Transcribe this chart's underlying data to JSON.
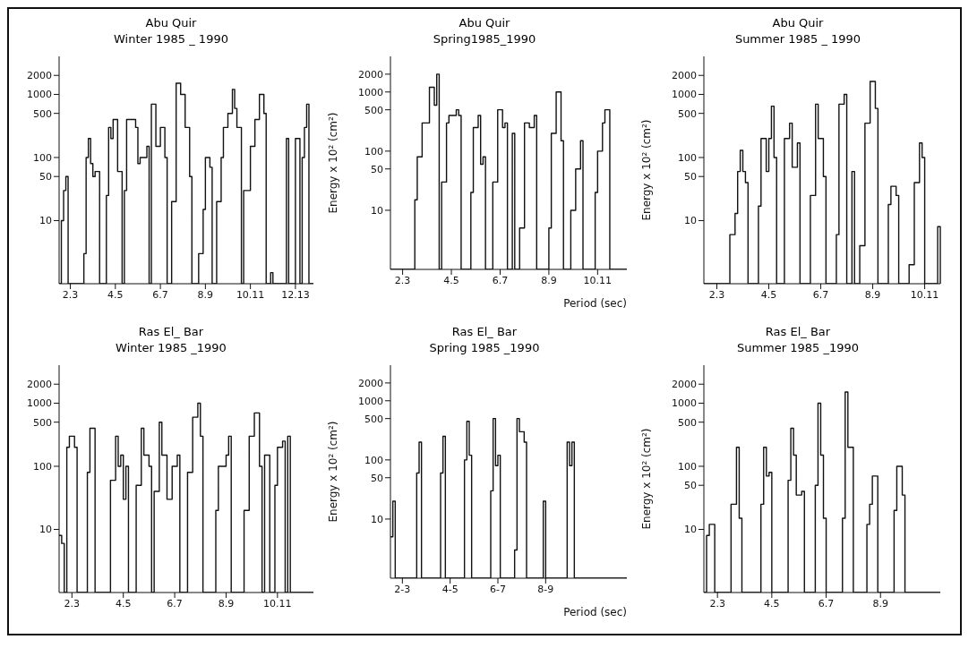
{
  "chart_data": [
    {
      "type": "step",
      "title": "Abu Quir",
      "subtitle": "Winter 1985 _ 1990",
      "categories": [
        null,
        null,
        null,
        null,
        null,
        "2.3",
        null,
        null,
        null,
        null,
        null,
        null,
        null,
        null,
        null,
        null,
        null,
        null,
        null,
        null,
        null,
        null,
        null,
        null,
        null,
        "4.5",
        null,
        null,
        null,
        null,
        null,
        null,
        null,
        null,
        null,
        null,
        null,
        null,
        null,
        null,
        null,
        null,
        null,
        null,
        null,
        "6.7",
        null,
        null,
        null,
        null,
        null,
        null,
        null,
        null,
        null,
        null,
        null,
        null,
        null,
        null,
        null,
        null,
        null,
        null,
        null,
        "8.9",
        null,
        null,
        null,
        null,
        null,
        null,
        null,
        null,
        null,
        null,
        null,
        null,
        null,
        null,
        null,
        null,
        null,
        null,
        null,
        "10.11",
        null,
        null,
        null,
        null,
        null,
        null,
        null,
        null,
        null,
        null,
        null,
        null,
        null,
        null,
        null,
        null,
        null,
        null,
        null,
        "12.13",
        null,
        null,
        null,
        null,
        null,
        null,
        null,
        null
      ],
      "series": [
        {
          "color": "#111111",
          "values": [
            1,
            10,
            30,
            50,
            1,
            1,
            1,
            1,
            1,
            1,
            1,
            3,
            100,
            200,
            80,
            50,
            60,
            60,
            1,
            1,
            1,
            25,
            300,
            200,
            400,
            400,
            60,
            60,
            1,
            30,
            400,
            400,
            400,
            400,
            300,
            80,
            100,
            100,
            100,
            150,
            1,
            700,
            700,
            150,
            150,
            300,
            300,
            100,
            1,
            1,
            20,
            20,
            1500,
            1500,
            1000,
            1000,
            300,
            300,
            50,
            1,
            1,
            1,
            3,
            3,
            15,
            100,
            100,
            70,
            1,
            1,
            20,
            20,
            100,
            300,
            300,
            500,
            500,
            1200,
            600,
            300,
            300,
            1,
            30,
            30,
            30,
            150,
            150,
            400,
            400,
            1000,
            1000,
            500,
            1,
            1,
            1.5,
            1,
            1,
            1,
            1,
            1,
            1,
            200,
            1,
            1,
            1,
            200,
            200,
            1,
            100,
            300,
            700,
            1,
            1,
            1
          ]
        }
      ],
      "log": "y",
      "ylim": [
        1,
        4000
      ],
      "yticks": [
        10,
        50,
        100,
        500,
        1000,
        2000
      ],
      "marker": "none"
    },
    {
      "type": "step",
      "title": "Abu Quir",
      "subtitle": "Spring1985_1990",
      "ylabel": "Energy x 10² (cm²)",
      "xlabel": "Period (sec)",
      "categories": [
        null,
        null,
        null,
        null,
        null,
        "2.3",
        null,
        null,
        null,
        null,
        null,
        null,
        null,
        null,
        null,
        null,
        null,
        null,
        null,
        null,
        null,
        null,
        null,
        null,
        null,
        "4.5",
        null,
        null,
        null,
        null,
        null,
        null,
        null,
        null,
        null,
        null,
        null,
        null,
        null,
        null,
        null,
        null,
        null,
        null,
        null,
        "6.7",
        null,
        null,
        null,
        null,
        null,
        null,
        null,
        null,
        null,
        null,
        null,
        null,
        null,
        null,
        null,
        null,
        null,
        null,
        null,
        "8.9",
        null,
        null,
        null,
        null,
        null,
        null,
        null,
        null,
        null,
        null,
        null,
        null,
        null,
        null,
        null,
        null,
        null,
        null,
        null,
        "10.11",
        null,
        null,
        null,
        null,
        null,
        null,
        null,
        null,
        null,
        null,
        null,
        null
      ],
      "series": [
        {
          "color": "#111111",
          "values": [
            1,
            1,
            1,
            1,
            1,
            1,
            1,
            1,
            1,
            1,
            15,
            80,
            80,
            300,
            300,
            300,
            1200,
            1200,
            600,
            2000,
            1,
            30,
            30,
            300,
            400,
            400,
            400,
            500,
            400,
            1,
            1,
            1,
            1,
            20,
            250,
            250,
            400,
            60,
            80,
            1,
            1,
            1,
            30,
            30,
            500,
            500,
            250,
            300,
            1,
            1,
            200,
            1,
            1,
            5,
            5,
            300,
            300,
            250,
            250,
            400,
            1,
            1,
            1,
            1,
            1,
            5,
            200,
            200,
            1000,
            1000,
            150,
            1,
            1,
            1,
            10,
            10,
            50,
            50,
            150,
            1,
            1,
            1,
            1,
            1,
            20,
            100,
            100,
            300,
            500,
            500,
            1,
            1,
            1,
            1,
            1,
            1,
            1,
            1
          ]
        }
      ],
      "log": "y",
      "ylim": [
        1,
        4000
      ],
      "yticks": [
        10,
        50,
        100,
        500,
        1000,
        2000
      ],
      "marker": "none"
    },
    {
      "type": "step",
      "title": "Abu Quir",
      "subtitle": "Summer 1985 _ 1990",
      "ylabel": "Energy x 10² (cm²)",
      "categories": [
        null,
        null,
        null,
        null,
        null,
        "2.3",
        null,
        null,
        null,
        null,
        null,
        null,
        null,
        null,
        null,
        null,
        null,
        null,
        null,
        null,
        null,
        null,
        null,
        null,
        null,
        "4.5",
        null,
        null,
        null,
        null,
        null,
        null,
        null,
        null,
        null,
        null,
        null,
        null,
        null,
        null,
        null,
        null,
        null,
        null,
        null,
        "6.7",
        null,
        null,
        null,
        null,
        null,
        null,
        null,
        null,
        null,
        null,
        null,
        null,
        null,
        null,
        null,
        null,
        null,
        null,
        null,
        "8.9",
        null,
        null,
        null,
        null,
        null,
        null,
        null,
        null,
        null,
        null,
        null,
        null,
        null,
        null,
        null,
        null,
        null,
        null,
        null,
        "10.11",
        null,
        null,
        null,
        null,
        null,
        null
      ],
      "series": [
        {
          "color": "#111111",
          "values": [
            1,
            1,
            1,
            1,
            1,
            1,
            1,
            1,
            1,
            1,
            6,
            6,
            13,
            60,
            130,
            60,
            40,
            1,
            1,
            1,
            1,
            17,
            200,
            200,
            60,
            200,
            650,
            100,
            1,
            1,
            1,
            200,
            200,
            350,
            70,
            70,
            170,
            1,
            1,
            1,
            1,
            25,
            25,
            700,
            200,
            200,
            50,
            1,
            1,
            1,
            1,
            6,
            700,
            700,
            1000,
            1,
            1,
            60,
            1,
            1,
            4,
            4,
            350,
            350,
            1600,
            1600,
            600,
            1,
            1,
            1,
            1,
            18,
            35,
            35,
            25,
            1,
            1,
            1,
            1,
            2,
            2,
            40,
            40,
            170,
            100,
            1,
            1,
            1,
            1,
            1,
            8,
            1
          ]
        }
      ],
      "log": "y",
      "ylim": [
        1,
        4000
      ],
      "yticks": [
        10,
        50,
        100,
        500,
        1000,
        2000
      ],
      "marker": "none"
    },
    {
      "type": "step",
      "title": "Ras El_ Bar",
      "subtitle": "Winter 1985 _1990",
      "categories": [
        null,
        null,
        null,
        null,
        null,
        "2.3",
        null,
        null,
        null,
        null,
        null,
        null,
        null,
        null,
        null,
        null,
        null,
        null,
        null,
        null,
        null,
        null,
        null,
        null,
        null,
        "4.5",
        null,
        null,
        null,
        null,
        null,
        null,
        null,
        null,
        null,
        null,
        null,
        null,
        null,
        null,
        null,
        null,
        null,
        null,
        null,
        "6.7",
        null,
        null,
        null,
        null,
        null,
        null,
        null,
        null,
        null,
        null,
        null,
        null,
        null,
        null,
        null,
        null,
        null,
        null,
        null,
        "8.9",
        null,
        null,
        null,
        null,
        null,
        null,
        null,
        null,
        null,
        null,
        null,
        null,
        null,
        null,
        null,
        null,
        null,
        null,
        null,
        "10.11",
        null,
        null,
        null,
        null,
        null,
        null,
        null,
        null,
        null,
        null,
        null,
        null,
        null,
        null
      ],
      "series": [
        {
          "color": "#111111",
          "values": [
            8,
            6,
            1,
            200,
            300,
            300,
            200,
            1,
            1,
            1,
            1,
            80,
            400,
            400,
            1,
            1,
            1,
            1,
            1,
            1,
            60,
            60,
            300,
            100,
            150,
            30,
            100,
            1,
            1,
            1,
            50,
            50,
            400,
            150,
            150,
            100,
            1,
            40,
            40,
            500,
            150,
            150,
            30,
            30,
            100,
            100,
            150,
            1,
            1,
            1,
            80,
            80,
            600,
            600,
            1000,
            300,
            1,
            1,
            1,
            1,
            1,
            20,
            100,
            100,
            100,
            150,
            300,
            1,
            1,
            1,
            1,
            1,
            20,
            20,
            300,
            300,
            700,
            700,
            100,
            1,
            150,
            150,
            1,
            1,
            50,
            200,
            200,
            250,
            1,
            300,
            1,
            1,
            1,
            1,
            1,
            1,
            1,
            1,
            1,
            1
          ]
        }
      ],
      "log": "y",
      "ylim": [
        1,
        4000
      ],
      "yticks": [
        10,
        100,
        500,
        1000,
        2000
      ],
      "marker": "none"
    },
    {
      "type": "step",
      "title": "Ras El_ Bar",
      "subtitle": "Spring 1985 _1990",
      "ylabel": "Energy x 10² (cm²)",
      "xlabel": "Period (sec)",
      "categories": [
        null,
        null,
        null,
        null,
        null,
        "2-3",
        null,
        null,
        null,
        null,
        null,
        null,
        null,
        null,
        null,
        null,
        null,
        null,
        null,
        null,
        null,
        null,
        null,
        null,
        null,
        "4-5",
        null,
        null,
        null,
        null,
        null,
        null,
        null,
        null,
        null,
        null,
        null,
        null,
        null,
        null,
        null,
        null,
        null,
        null,
        null,
        "6-7",
        null,
        null,
        null,
        null,
        null,
        null,
        null,
        null,
        null,
        null,
        null,
        null,
        null,
        null,
        null,
        null,
        null,
        null,
        null,
        "8-9",
        null,
        null,
        null,
        null,
        null,
        null,
        null,
        null,
        null,
        null,
        null,
        null,
        null,
        null,
        null,
        null,
        null,
        null,
        null,
        null,
        null,
        null,
        null,
        null,
        null,
        null,
        null,
        null,
        null,
        null,
        null,
        null,
        null,
        null
      ],
      "series": [
        {
          "color": "#111111",
          "values": [
            5,
            20,
            1,
            1,
            1,
            1,
            1,
            1,
            1,
            1,
            1,
            60,
            200,
            1,
            1,
            1,
            1,
            1,
            1,
            1,
            1,
            60,
            250,
            1,
            1,
            1,
            1,
            1,
            1,
            1,
            1,
            100,
            450,
            120,
            1,
            1,
            1,
            1,
            1,
            1,
            1,
            1,
            30,
            500,
            80,
            120,
            1,
            1,
            1,
            1,
            1,
            1,
            3,
            500,
            300,
            300,
            200,
            1,
            1,
            1,
            1,
            1,
            1,
            1,
            20,
            1,
            1,
            1,
            1,
            1,
            1,
            1,
            1,
            1,
            200,
            80,
            200,
            1,
            1,
            1,
            1,
            1,
            1,
            1,
            1,
            1,
            1,
            1,
            1,
            1,
            1,
            1,
            1,
            1,
            1,
            1,
            1,
            1,
            1,
            1
          ]
        }
      ],
      "log": "y",
      "ylim": [
        1,
        4000
      ],
      "yticks": [
        10,
        50,
        100,
        500,
        1000,
        2000
      ],
      "marker": "none"
    },
    {
      "type": "step",
      "title": "Ras El_ Bar",
      "subtitle": "Summer 1985 _1990",
      "ylabel": "Energy x 10² (cm²)",
      "categories": [
        null,
        null,
        null,
        null,
        null,
        "2.3",
        null,
        null,
        null,
        null,
        null,
        null,
        null,
        null,
        null,
        null,
        null,
        null,
        null,
        null,
        null,
        null,
        null,
        null,
        null,
        "4.5",
        null,
        null,
        null,
        null,
        null,
        null,
        null,
        null,
        null,
        null,
        null,
        null,
        null,
        null,
        null,
        null,
        null,
        null,
        null,
        "6.7",
        null,
        null,
        null,
        null,
        null,
        null,
        null,
        null,
        null,
        null,
        null,
        null,
        null,
        null,
        null,
        null,
        null,
        null,
        null,
        "8.9",
        null,
        null,
        null,
        null,
        null,
        null,
        null,
        null,
        null,
        null,
        null,
        null,
        null,
        null,
        null,
        null,
        null,
        null,
        null,
        null,
        null,
        null
      ],
      "series": [
        {
          "color": "#111111",
          "values": [
            1,
            8,
            12,
            12,
            1,
            1,
            1,
            1,
            1,
            1,
            25,
            25,
            200,
            15,
            1,
            1,
            1,
            1,
            1,
            1,
            1,
            25,
            200,
            70,
            80,
            1,
            1,
            1,
            1,
            1,
            1,
            60,
            400,
            150,
            35,
            35,
            40,
            1,
            1,
            1,
            1,
            50,
            1000,
            150,
            15,
            1,
            1,
            1,
            1,
            1,
            1,
            15,
            1500,
            200,
            200,
            1,
            1,
            1,
            1,
            1,
            12,
            25,
            70,
            70,
            1,
            1,
            1,
            1,
            1,
            1,
            20,
            100,
            100,
            35,
            1,
            1,
            1,
            1,
            1,
            1,
            1,
            1,
            1,
            1,
            1,
            1,
            1,
            1
          ]
        }
      ],
      "log": "y",
      "ylim": [
        1,
        4000
      ],
      "yticks": [
        10,
        50,
        100,
        500,
        1000,
        2000
      ],
      "marker": "none"
    }
  ]
}
